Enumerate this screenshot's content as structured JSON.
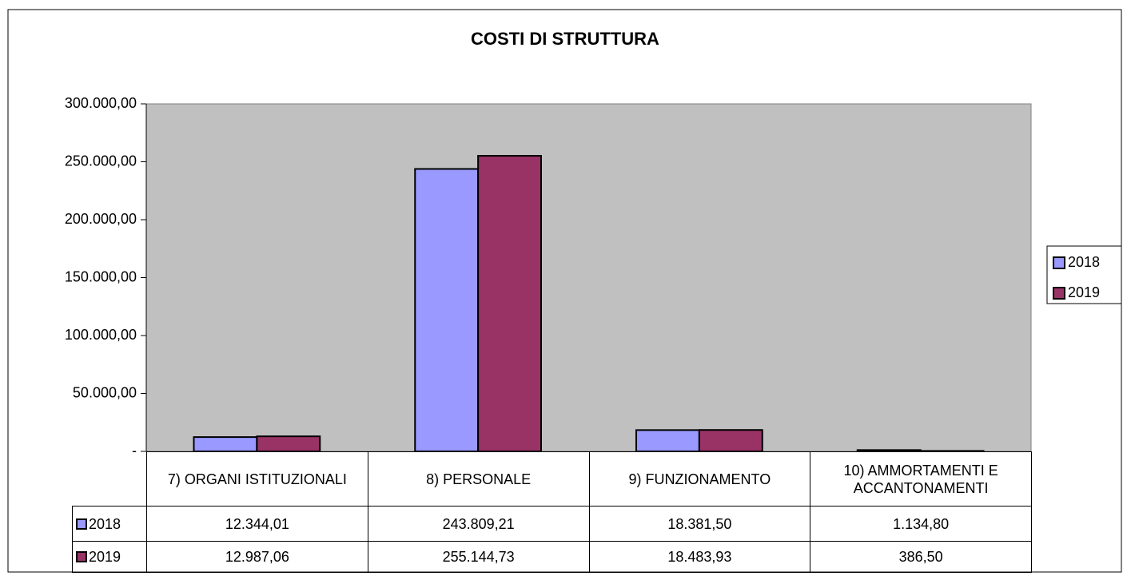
{
  "chart_data": {
    "type": "bar",
    "title": "COSTI DI STRUTTURA",
    "categories": [
      "7) ORGANI ISTITUZIONALI",
      "8) PERSONALE",
      "9) FUNZIONAMENTO",
      "10) AMMORTAMENTI E ACCANTONAMENTI"
    ],
    "series": [
      {
        "name": "2018",
        "color": "#9999ff",
        "values": [
          12344.01,
          243809.21,
          18381.5,
          1134.8
        ],
        "value_labels": [
          "12.344,01",
          "243.809,21",
          "18.381,50",
          "1.134,80"
        ]
      },
      {
        "name": "2019",
        "color": "#993366",
        "values": [
          12987.06,
          255144.73,
          18483.93,
          386.5
        ],
        "value_labels": [
          "12.987,06",
          "255.144,73",
          "18.483,93",
          "386,50"
        ]
      }
    ],
    "ylim": [
      0,
      300000
    ],
    "yticks": [
      {
        "value": 0,
        "label": "-"
      },
      {
        "value": 50000,
        "label": "50.000,00"
      },
      {
        "value": 100000,
        "label": "100.000,00"
      },
      {
        "value": 150000,
        "label": "150.000,00"
      },
      {
        "value": 200000,
        "label": "200.000,00"
      },
      {
        "value": 250000,
        "label": "250.000,00"
      },
      {
        "value": 300000,
        "label": "300.000,00"
      }
    ],
    "legend": "right",
    "plot_background": "#c0c0c0"
  }
}
